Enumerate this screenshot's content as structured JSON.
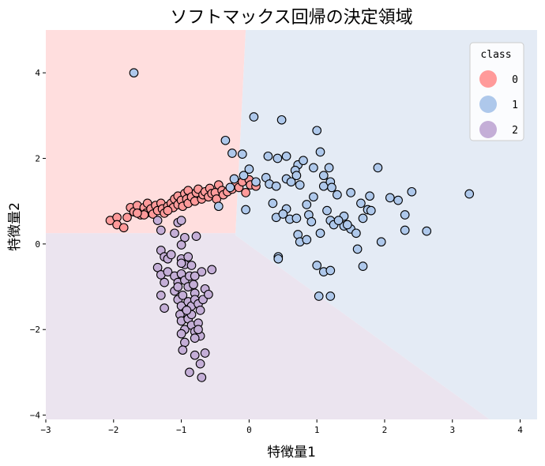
{
  "chart_data": {
    "type": "scatter",
    "title": "ソフトマックス回帰の決定領域",
    "xlabel": "特徴量1",
    "ylabel": "特徴量2",
    "xlim": [
      -3.0,
      4.25
    ],
    "ylim": [
      -4.1,
      5.0
    ],
    "x_ticks": [
      "−3",
      "−2",
      "−1",
      "0",
      "1",
      "2",
      "3",
      "4"
    ],
    "y_ticks": [
      "−4",
      "−2",
      "0",
      "2",
      "4"
    ],
    "legend": {
      "title": "class",
      "position": "top-right",
      "entries": [
        "0",
        "1",
        "2"
      ]
    },
    "colors": {
      "class0": "#ff9a9a",
      "class1": "#aec8eb",
      "class2": "#c4aed7",
      "region0": "#ffdede",
      "region1": "#e4ebf5",
      "region2": "#ebe4ef"
    },
    "regions": [
      {
        "class": "0",
        "polygon": [
          [
            -3.0,
            5.0
          ],
          [
            -0.05,
            5.0
          ],
          [
            -0.2,
            0.25
          ],
          [
            -3.0,
            0.25
          ]
        ]
      },
      {
        "class": "1",
        "polygon": [
          [
            -0.05,
            5.0
          ],
          [
            4.25,
            5.0
          ],
          [
            4.25,
            -4.1
          ],
          [
            3.55,
            -4.1
          ],
          [
            -0.2,
            0.2
          ],
          [
            -0.2,
            0.25
          ]
        ]
      },
      {
        "class": "2",
        "polygon": [
          [
            -3.0,
            0.25
          ],
          [
            -0.2,
            0.25
          ],
          [
            -0.2,
            0.2
          ],
          [
            3.55,
            -4.1
          ],
          [
            -3.0,
            -4.1
          ]
        ]
      }
    ],
    "series": [
      {
        "name": "0",
        "points": [
          [
            -2.05,
            0.55
          ],
          [
            -1.95,
            0.62
          ],
          [
            -1.95,
            0.45
          ],
          [
            -1.85,
            0.38
          ],
          [
            -1.8,
            0.62
          ],
          [
            -1.75,
            0.85
          ],
          [
            -1.7,
            0.75
          ],
          [
            -1.65,
            0.9
          ],
          [
            -1.6,
            0.68
          ],
          [
            -1.55,
            0.85
          ],
          [
            -1.52,
            0.72
          ],
          [
            -1.5,
            0.95
          ],
          [
            -1.45,
            0.82
          ],
          [
            -1.42,
            0.7
          ],
          [
            -1.38,
            0.9
          ],
          [
            -1.35,
            0.78
          ],
          [
            -1.3,
            0.95
          ],
          [
            -1.28,
            0.82
          ],
          [
            -1.25,
            0.72
          ],
          [
            -1.2,
            0.88
          ],
          [
            -1.15,
            0.95
          ],
          [
            -1.12,
            0.85
          ],
          [
            -1.1,
            1.05
          ],
          [
            -1.05,
            0.92
          ],
          [
            -1.05,
            1.12
          ],
          [
            -1.0,
            1.02
          ],
          [
            -0.98,
            0.88
          ],
          [
            -0.95,
            1.18
          ],
          [
            -0.92,
            1.05
          ],
          [
            -0.9,
            0.95
          ],
          [
            -0.9,
            1.25
          ],
          [
            -0.85,
            1.1
          ],
          [
            -0.8,
            1.0
          ],
          [
            -0.78,
            1.2
          ],
          [
            -0.75,
            1.28
          ],
          [
            -0.7,
            1.05
          ],
          [
            -0.68,
            1.15
          ],
          [
            -0.65,
            1.22
          ],
          [
            -0.6,
            1.1
          ],
          [
            -0.58,
            1.3
          ],
          [
            -0.55,
            1.18
          ],
          [
            -0.5,
            1.2
          ],
          [
            -0.48,
            1.05
          ],
          [
            -0.45,
            1.38
          ],
          [
            -0.4,
            1.25
          ],
          [
            -0.38,
            1.15
          ],
          [
            -0.32,
            1.22
          ],
          [
            -0.25,
            1.28
          ],
          [
            -0.2,
            1.38
          ],
          [
            -0.15,
            1.32
          ],
          [
            -0.1,
            1.45
          ],
          [
            -0.05,
            1.2
          ],
          [
            0.0,
            1.5
          ],
          [
            0.02,
            1.38
          ],
          [
            0.1,
            1.35
          ],
          [
            -1.55,
            0.68
          ],
          [
            -1.2,
            0.78
          ],
          [
            -1.65,
            0.72
          ]
        ]
      },
      {
        "name": "1",
        "points": [
          [
            -1.7,
            4.0
          ],
          [
            0.07,
            2.97
          ],
          [
            0.48,
            2.9
          ],
          [
            1.0,
            2.65
          ],
          [
            -0.35,
            2.42
          ],
          [
            -0.25,
            2.12
          ],
          [
            -0.1,
            2.1
          ],
          [
            0.28,
            2.05
          ],
          [
            0.42,
            2.0
          ],
          [
            0.55,
            2.05
          ],
          [
            1.05,
            2.15
          ],
          [
            0.72,
            1.85
          ],
          [
            0.68,
            1.72
          ],
          [
            0.8,
            1.95
          ],
          [
            0.95,
            1.78
          ],
          [
            1.18,
            1.78
          ],
          [
            1.9,
            1.78
          ],
          [
            0.0,
            1.75
          ],
          [
            -0.22,
            1.52
          ],
          [
            0.1,
            1.45
          ],
          [
            0.25,
            1.55
          ],
          [
            0.3,
            1.4
          ],
          [
            0.4,
            1.35
          ],
          [
            0.55,
            1.52
          ],
          [
            0.62,
            1.45
          ],
          [
            0.75,
            1.38
          ],
          [
            0.7,
            1.6
          ],
          [
            1.1,
            1.35
          ],
          [
            1.2,
            1.45
          ],
          [
            1.22,
            1.32
          ],
          [
            1.3,
            1.15
          ],
          [
            1.5,
            1.2
          ],
          [
            2.08,
            1.08
          ],
          [
            2.2,
            1.02
          ],
          [
            2.4,
            1.22
          ],
          [
            3.25,
            1.17
          ],
          [
            0.35,
            0.95
          ],
          [
            0.55,
            0.82
          ],
          [
            0.85,
            0.92
          ],
          [
            0.95,
            1.1
          ],
          [
            1.15,
            0.78
          ],
          [
            1.4,
            0.65
          ],
          [
            1.65,
            0.95
          ],
          [
            1.75,
            0.8
          ],
          [
            1.78,
            1.12
          ],
          [
            0.4,
            0.62
          ],
          [
            0.5,
            0.7
          ],
          [
            0.6,
            0.58
          ],
          [
            0.7,
            0.6
          ],
          [
            0.88,
            0.68
          ],
          [
            0.92,
            0.52
          ],
          [
            1.2,
            0.55
          ],
          [
            1.25,
            0.45
          ],
          [
            1.4,
            0.42
          ],
          [
            1.5,
            0.35
          ],
          [
            1.68,
            0.6
          ],
          [
            1.58,
            0.25
          ],
          [
            2.3,
            0.68
          ],
          [
            2.3,
            0.32
          ],
          [
            2.62,
            0.3
          ],
          [
            1.95,
            0.05
          ],
          [
            0.72,
            0.22
          ],
          [
            0.75,
            0.05
          ],
          [
            0.85,
            0.1
          ],
          [
            -0.05,
            0.8
          ],
          [
            -0.45,
            0.88
          ],
          [
            -0.28,
            1.32
          ],
          [
            -0.08,
            1.6
          ],
          [
            0.43,
            -0.3
          ],
          [
            0.43,
            -0.35
          ],
          [
            1.0,
            -0.5
          ],
          [
            1.1,
            -0.65
          ],
          [
            1.2,
            -0.62
          ],
          [
            1.68,
            -0.52
          ],
          [
            1.03,
            -1.22
          ],
          [
            1.2,
            -1.22
          ],
          [
            1.6,
            -0.12
          ],
          [
            1.05,
            0.25
          ],
          [
            1.32,
            0.55
          ],
          [
            1.45,
            0.45
          ],
          [
            1.1,
            1.6
          ],
          [
            1.8,
            0.78
          ]
        ]
      },
      {
        "name": "2",
        "points": [
          [
            -1.35,
            0.55
          ],
          [
            -1.3,
            0.32
          ],
          [
            -1.1,
            0.25
          ],
          [
            -1.05,
            0.5
          ],
          [
            -1.0,
            0.55
          ],
          [
            -0.95,
            0.15
          ],
          [
            -0.78,
            0.18
          ],
          [
            -1.0,
            -0.02
          ],
          [
            -1.3,
            -0.15
          ],
          [
            -1.25,
            -0.3
          ],
          [
            -1.2,
            -0.35
          ],
          [
            -1.15,
            -0.25
          ],
          [
            -1.0,
            -0.35
          ],
          [
            -0.95,
            -0.48
          ],
          [
            -0.9,
            -0.3
          ],
          [
            -0.85,
            -0.5
          ],
          [
            -1.35,
            -0.55
          ],
          [
            -1.3,
            -0.72
          ],
          [
            -1.25,
            -0.9
          ],
          [
            -1.2,
            -0.65
          ],
          [
            -1.1,
            -0.75
          ],
          [
            -1.05,
            -0.9
          ],
          [
            -1.0,
            -0.7
          ],
          [
            -0.95,
            -0.85
          ],
          [
            -0.9,
            -1.0
          ],
          [
            -0.88,
            -0.75
          ],
          [
            -0.82,
            -0.95
          ],
          [
            -0.8,
            -1.15
          ],
          [
            -1.3,
            -1.2
          ],
          [
            -1.25,
            -1.5
          ],
          [
            -1.1,
            -1.1
          ],
          [
            -1.05,
            -1.3
          ],
          [
            -1.0,
            -1.45
          ],
          [
            -0.98,
            -1.2
          ],
          [
            -0.95,
            -1.6
          ],
          [
            -0.9,
            -1.35
          ],
          [
            -0.85,
            -1.45
          ],
          [
            -0.8,
            -1.3
          ],
          [
            -0.75,
            -1.4
          ],
          [
            -0.72,
            -1.55
          ],
          [
            -0.68,
            -1.3
          ],
          [
            -0.65,
            -1.05
          ],
          [
            -0.6,
            -1.18
          ],
          [
            -0.55,
            -0.6
          ],
          [
            -0.7,
            -0.65
          ],
          [
            -1.02,
            -1.65
          ],
          [
            -1.0,
            -1.8
          ],
          [
            -0.95,
            -2.0
          ],
          [
            -0.9,
            -1.75
          ],
          [
            -0.85,
            -1.9
          ],
          [
            -0.8,
            -2.05
          ],
          [
            -0.75,
            -1.85
          ],
          [
            -0.72,
            -2.15
          ],
          [
            -1.0,
            -2.1
          ],
          [
            -0.95,
            -2.3
          ],
          [
            -0.8,
            -2.2
          ],
          [
            -0.75,
            -2.0
          ],
          [
            -0.98,
            -2.48
          ],
          [
            -0.8,
            -2.6
          ],
          [
            -0.65,
            -2.55
          ],
          [
            -0.72,
            -2.8
          ],
          [
            -0.88,
            -3.0
          ],
          [
            -0.7,
            -3.12
          ],
          [
            -1.05,
            -1.0
          ],
          [
            -1.0,
            -0.45
          ],
          [
            -0.8,
            -0.75
          ],
          [
            -0.85,
            -1.65
          ],
          [
            -0.92,
            -1.55
          ]
        ]
      }
    ]
  }
}
